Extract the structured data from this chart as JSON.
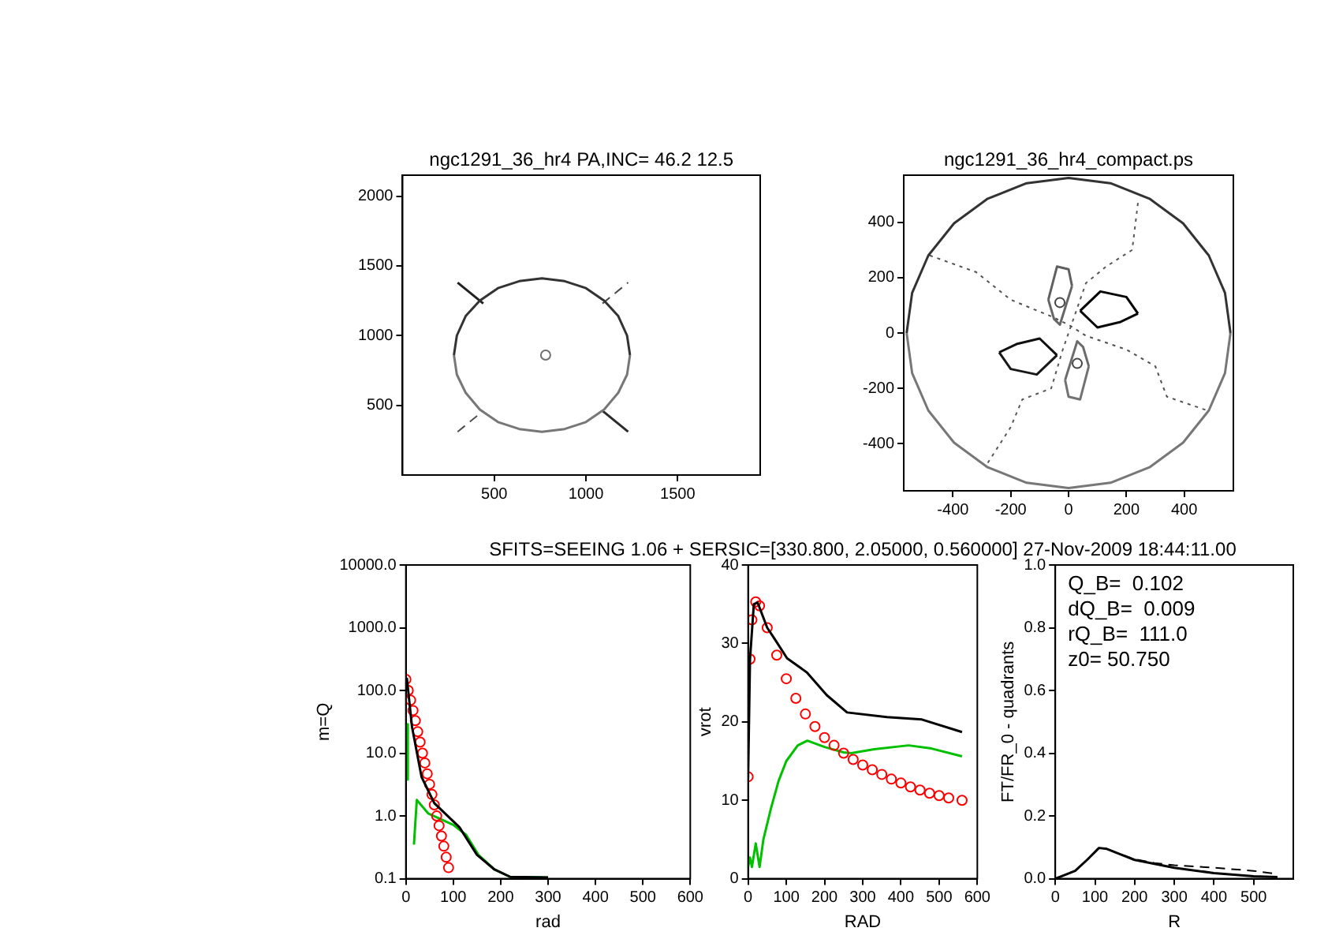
{
  "chart_data": [
    {
      "type": "line",
      "title": "ngc1291_36_hr4 PA,INC= 46.2 12.5",
      "xlim": [
        0,
        1950
      ],
      "ylim": [
        0,
        2150
      ],
      "xticks": [
        500,
        1000,
        1500
      ],
      "yticks": [
        500,
        1000,
        1500,
        2000
      ],
      "grid": false,
      "legend": false,
      "series": [
        {
          "type": "line",
          "color": "#333333",
          "marker": "none",
          "line_style": "solid",
          "x": [
            280,
            296,
            344,
            421,
            520,
            636,
            760,
            884,
            1000,
            1099,
            1176,
            1224,
            1240
          ],
          "values": [
            860,
            1000,
            1140,
            1250,
            1340,
            1390,
            1410,
            1390,
            1340,
            1250,
            1140,
            1000,
            860
          ]
        },
        {
          "type": "line",
          "color": "#777777",
          "marker": "none",
          "line_style": "solid",
          "x": [
            280,
            296,
            344,
            421,
            520,
            636,
            760,
            884,
            1000,
            1099,
            1176,
            1224,
            1240
          ],
          "values": [
            860,
            720,
            590,
            470,
            380,
            330,
            310,
            330,
            380,
            470,
            590,
            720,
            860
          ]
        },
        {
          "type": "line",
          "color": "#202020",
          "marker": "none",
          "line_style": "solid",
          "x": [
            300,
            440
          ],
          "values": [
            1380,
            1230
          ]
        },
        {
          "type": "line",
          "color": "#484848",
          "marker": "none",
          "line_style": "dashed",
          "x": [
            1090,
            1230
          ],
          "values": [
            1230,
            1380
          ]
        },
        {
          "type": "line",
          "color": "#505050",
          "marker": "none",
          "line_style": "dashed",
          "x": [
            300,
            440
          ],
          "values": [
            310,
            460
          ]
        },
        {
          "type": "line",
          "color": "#2a2a2a",
          "marker": "none",
          "line_style": "solid",
          "x": [
            1090,
            1230
          ],
          "values": [
            460,
            310
          ]
        },
        {
          "type": "scatter",
          "color": "#707070",
          "marker": "circle",
          "x": [
            780
          ],
          "values": [
            860
          ]
        }
      ]
    },
    {
      "type": "line",
      "title": "ngc1291_36_hr4_compact.ps",
      "xlim": [
        -570,
        570
      ],
      "ylim": [
        -570,
        570
      ],
      "xticks": [
        -400,
        -200,
        0,
        200,
        400
      ],
      "yticks": [
        -400,
        -200,
        0,
        200,
        400
      ],
      "grid": false,
      "legend": false,
      "series": [
        {
          "type": "line",
          "color": "#333333",
          "marker": "none",
          "line_style": "solid",
          "x": [
            -560,
            -541,
            -485,
            -396,
            -280,
            -145,
            0,
            145,
            280,
            396,
            485,
            541,
            560
          ],
          "values": [
            0,
            145,
            280,
            396,
            485,
            541,
            560,
            541,
            485,
            396,
            280,
            145,
            0
          ]
        },
        {
          "type": "line",
          "color": "#777777",
          "marker": "none",
          "line_style": "solid",
          "x": [
            -560,
            -541,
            -485,
            -396,
            -280,
            -145,
            0,
            145,
            280,
            396,
            485,
            541,
            560
          ],
          "values": [
            0,
            -145,
            -280,
            -396,
            -485,
            -541,
            -560,
            -541,
            -485,
            -396,
            -280,
            -145,
            0
          ]
        },
        {
          "type": "line",
          "color": "#505050",
          "marker": "none",
          "line_style": "dotted",
          "x": [
            -480,
            -320,
            -200,
            -60,
            0,
            60,
            200,
            300,
            340,
            480
          ],
          "values": [
            280,
            220,
            120,
            60,
            30,
            -10,
            -60,
            -120,
            -230,
            -280
          ]
        },
        {
          "type": "line",
          "color": "#585858",
          "marker": "none",
          "line_style": "dotted",
          "x": [
            240,
            220,
            130,
            60,
            20,
            0,
            -20,
            -60,
            -160,
            -200,
            -280
          ],
          "values": [
            470,
            300,
            240,
            180,
            60,
            0,
            -60,
            -200,
            -240,
            -340,
            -470
          ]
        },
        {
          "type": "line",
          "color": "#000000",
          "marker": "none",
          "line_style": "solid",
          "x": [
            40,
            110,
            200,
            240
          ],
          "values": [
            80,
            150,
            130,
            70
          ]
        },
        {
          "type": "line",
          "color": "#080808",
          "marker": "none",
          "line_style": "solid",
          "x": [
            40,
            100,
            180,
            240
          ],
          "values": [
            80,
            20,
            40,
            70
          ]
        },
        {
          "type": "line",
          "color": "#101010",
          "marker": "none",
          "line_style": "solid",
          "x": [
            -240,
            -180,
            -100,
            -40
          ],
          "values": [
            -70,
            -40,
            -20,
            -80
          ]
        },
        {
          "type": "line",
          "color": "#181818",
          "marker": "none",
          "line_style": "solid",
          "x": [
            -240,
            -200,
            -110,
            -40
          ],
          "values": [
            -70,
            -130,
            -150,
            -80
          ]
        },
        {
          "type": "line",
          "color": "#606060",
          "marker": "none",
          "line_style": "solid",
          "x": [
            -70,
            -40,
            0,
            12
          ],
          "values": [
            120,
            240,
            230,
            170
          ]
        },
        {
          "type": "line",
          "color": "#666666",
          "marker": "none",
          "line_style": "solid",
          "x": [
            -70,
            -50,
            -30,
            12
          ],
          "values": [
            120,
            50,
            30,
            170
          ]
        },
        {
          "type": "line",
          "color": "#6c6c6c",
          "marker": "none",
          "line_style": "solid",
          "x": [
            -12,
            30,
            50,
            70
          ],
          "values": [
            -170,
            -30,
            -50,
            -120
          ]
        },
        {
          "type": "line",
          "color": "#727272",
          "marker": "none",
          "line_style": "solid",
          "x": [
            -12,
            0,
            40,
            70
          ],
          "values": [
            -170,
            -230,
            -240,
            -120
          ]
        },
        {
          "type": "scatter",
          "color": "#444444",
          "marker": "circle",
          "x": [
            -30,
            30
          ],
          "values": [
            110,
            -110
          ]
        }
      ]
    },
    {
      "type": "line",
      "xlabel": "rad",
      "ylabel": "m=Q",
      "log": "y",
      "xlim": [
        0,
        600
      ],
      "ylim": [
        0.1,
        10000
      ],
      "xticks": [
        0,
        100,
        200,
        300,
        400,
        500,
        600
      ],
      "yticks": [
        {
          "value": 0.1,
          "label": "0.1"
        },
        {
          "value": 1,
          "label": "1.0"
        },
        {
          "value": 10,
          "label": "10.0"
        },
        {
          "value": 100,
          "label": "100.0"
        },
        {
          "value": 1000,
          "label": "1000.0"
        },
        {
          "value": 10000,
          "label": "10000.0"
        }
      ],
      "grid": false,
      "legend": false,
      "series": [
        {
          "type": "line",
          "color": "#000000",
          "marker": "none",
          "x": [
            2,
            13,
            33,
            60,
            113,
            150,
            187,
            220,
            300
          ],
          "values": [
            160,
            26,
            4.2,
            1.6,
            0.66,
            0.24,
            0.14,
            0.107,
            0.105
          ]
        },
        {
          "type": "scatter",
          "color": "#ff0000",
          "marker": "circle",
          "x": [
            0,
            5,
            10,
            15,
            20,
            25,
            30,
            35,
            40,
            45,
            50,
            55,
            60,
            65,
            70,
            75,
            80,
            85,
            90
          ],
          "values": [
            150,
            100,
            70,
            48,
            33,
            22,
            15,
            10,
            7,
            4.7,
            3.2,
            2.2,
            1.5,
            1,
            0.7,
            0.48,
            0.33,
            0.22,
            0.15
          ]
        },
        {
          "type": "line",
          "color": "#00c000",
          "marker": "none",
          "x": [
            3,
            4,
            null,
            17,
            23,
            47,
            100,
            127,
            153,
            187,
            220,
            300
          ],
          "values": [
            29,
            3.8,
            null,
            0.35,
            1.8,
            1.1,
            0.72,
            0.5,
            0.24,
            0.14,
            0.107,
            0.105
          ]
        }
      ]
    },
    {
      "type": "line",
      "title": "SFITS=SEEING 1.06 + SERSIC=[330.800, 2.05000, 0.560000]  27-Nov-2009 18:44:11.00",
      "xlabel": "RAD",
      "ylabel": "vrot",
      "xlim": [
        0,
        600
      ],
      "ylim": [
        0,
        40
      ],
      "xticks": [
        0,
        100,
        200,
        300,
        400,
        500,
        600
      ],
      "yticks": [
        0,
        10,
        20,
        30,
        40
      ],
      "grid": false,
      "legend": false,
      "series": [
        {
          "type": "line",
          "color": "#000000",
          "marker": "none",
          "x": [
            0,
            5,
            15,
            25,
            50,
            69,
            102,
            154,
            206,
            259,
            363,
            455,
            560
          ],
          "values": [
            12.8,
            28,
            35,
            35.2,
            32,
            30.6,
            28.1,
            26.3,
            23.4,
            21.2,
            20.6,
            20.3,
            18.7
          ]
        },
        {
          "type": "scatter",
          "color": "#ff0000",
          "marker": "circle",
          "x": [
            0,
            5,
            10,
            20,
            30,
            50,
            75,
            100,
            125,
            150,
            175,
            200,
            225,
            250,
            275,
            300,
            325,
            350,
            375,
            400,
            425,
            450,
            475,
            500,
            525,
            560
          ],
          "values": [
            13,
            28,
            33,
            35.3,
            34.8,
            32,
            28.5,
            25.5,
            23,
            21,
            19.4,
            18,
            17,
            16,
            15.2,
            14.5,
            13.9,
            13.3,
            12.7,
            12.2,
            11.7,
            11.3,
            10.9,
            10.6,
            10.3,
            10
          ]
        },
        {
          "type": "line",
          "color": "#00c000",
          "marker": "none",
          "x": [
            0,
            5,
            10,
            20,
            30,
            40,
            60,
            80,
            100,
            130,
            155,
            200,
            250,
            270,
            330,
            420,
            480,
            560
          ],
          "values": [
            1.5,
            2.7,
            1.5,
            4.5,
            1.5,
            5,
            9,
            12.5,
            15,
            17,
            17.6,
            16.8,
            16.1,
            16,
            16.5,
            17,
            16.6,
            15.6
          ]
        }
      ]
    },
    {
      "type": "line",
      "xlabel": "R",
      "ylabel": "FT/FR_0 - quadrants",
      "xlim": [
        0,
        600
      ],
      "ylim": [
        0,
        1
      ],
      "xticks": [
        0,
        100,
        200,
        300,
        400,
        500
      ],
      "yticks": [
        {
          "value": 0,
          "label": "0.0"
        },
        {
          "value": 0.2,
          "label": "0.2"
        },
        {
          "value": 0.4,
          "label": "0.4"
        },
        {
          "value": 0.6,
          "label": "0.6"
        },
        {
          "value": 0.8,
          "label": "0.8"
        },
        {
          "value": 1,
          "label": "1.0"
        }
      ],
      "grid": false,
      "legend": false,
      "annotations": [
        "Q_B=  0.102",
        "dQ_B=  0.009",
        "rQ_B=  111.0",
        "z0= 50.750"
      ],
      "series": [
        {
          "type": "line",
          "color": "#000000",
          "marker": "none",
          "line_style": "dashed",
          "x": [
            0,
            20,
            50,
            80,
            110,
            130,
            160,
            200,
            250,
            300,
            400,
            500,
            560
          ],
          "values": [
            0,
            0.01,
            0.025,
            0.06,
            0.098,
            0.095,
            0.08,
            0.062,
            0.05,
            0.043,
            0.035,
            0.025,
            0.015
          ]
        },
        {
          "type": "line",
          "color": "#000000",
          "marker": "none",
          "line_style": "solid",
          "x": [
            0,
            20,
            50,
            80,
            110,
            130,
            160,
            200,
            300,
            400,
            500,
            560
          ],
          "values": [
            0,
            0.01,
            0.025,
            0.06,
            0.098,
            0.095,
            0.08,
            0.06,
            0.035,
            0.018,
            0.008,
            0.005
          ]
        }
      ]
    }
  ]
}
